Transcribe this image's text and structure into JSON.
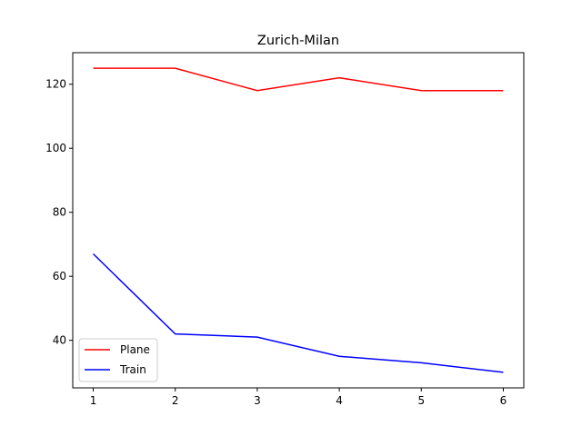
{
  "chart_data": {
    "type": "line",
    "title": "Zurich-Milan",
    "xlabel": "",
    "ylabel": "",
    "x": [
      1,
      2,
      3,
      4,
      5,
      6
    ],
    "xlim": [
      0.75,
      6.25
    ],
    "ylim": [
      25.15,
      129.85
    ],
    "x_ticks": [
      1,
      2,
      3,
      4,
      5,
      6
    ],
    "y_ticks": [
      40,
      60,
      80,
      100,
      120
    ],
    "grid": false,
    "legend_position": "lower-left",
    "series": [
      {
        "name": "Plane",
        "color": "#ff0000",
        "values": [
          125,
          125,
          118,
          122,
          118,
          118
        ]
      },
      {
        "name": "Train",
        "color": "#0000ff",
        "values": [
          67,
          42,
          41,
          35,
          33,
          30
        ]
      }
    ]
  }
}
